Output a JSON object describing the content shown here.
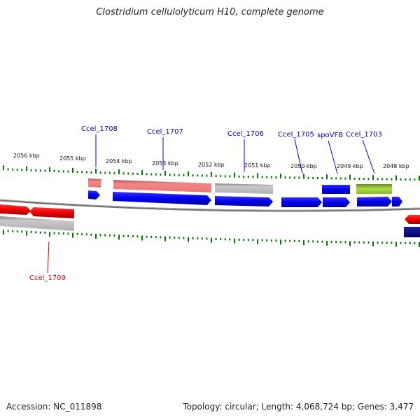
{
  "title": "Clostridium cellulolyticum H10, complete genome",
  "accession": "Accession: NC_011898",
  "summary": "Topology: circular; Length: 4,068,724 bp; Genes: 3,477",
  "colors": {
    "forward_cds": "#0000ee",
    "reverse_cds": "#ee0000",
    "rna_pink": "#e87878",
    "pseudo_gray": "#b8b8b8",
    "other_green": "#99cc33",
    "dark_blue": "#000080",
    "tick": "#007700",
    "label_forward": "#0000aa",
    "label_reverse": "#cc0000"
  },
  "kbp_labels": [
    "2056 kbp",
    "2055 kbp",
    "2054 kbp",
    "2053 kbp",
    "2052 kbp",
    "2051 kbp",
    "2050 kbp",
    "2049 kbp",
    "2048 kbp"
  ],
  "gene_labels": [
    {
      "text": "Ccel_1708",
      "strand": "forward"
    },
    {
      "text": "Ccel_1707",
      "strand": "forward"
    },
    {
      "text": "Ccel_1706",
      "strand": "forward"
    },
    {
      "text": "Ccel_1705",
      "strand": "forward"
    },
    {
      "text": "spoVFB",
      "strand": "forward"
    },
    {
      "text": "Ccel_1703",
      "strand": "forward"
    },
    {
      "text": "Ccel_1709",
      "strand": "reverse"
    }
  ]
}
